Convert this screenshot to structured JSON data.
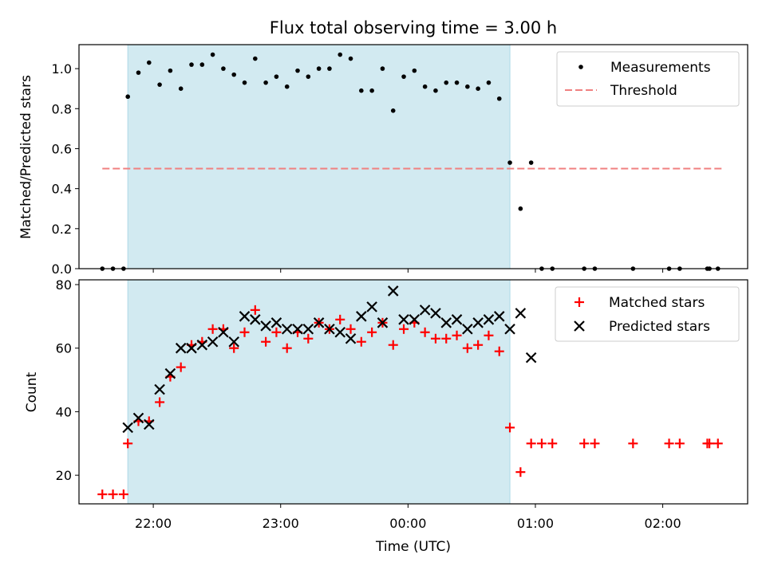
{
  "chart_data": [
    {
      "type": "scatter",
      "title": "Flux total observing time = 3.00 h",
      "ylabel": "Matched/Predicted stars",
      "xlabel": "",
      "xlim": [
        "21:25",
        "02:40"
      ],
      "ylim": [
        0,
        1.12
      ],
      "yticks": [
        0.0,
        0.2,
        0.4,
        0.6,
        0.8,
        1.0
      ],
      "ytick_labels": [
        "0.0",
        "0.2",
        "0.4",
        "0.6",
        "0.8",
        "1.0"
      ],
      "shaded_span": [
        "21:48",
        "00:48"
      ],
      "legend_position": "top-right",
      "grid": false,
      "colors": {
        "measurements": "#000000",
        "threshold": "#f08080",
        "span": "#add8e6"
      },
      "series": [
        {
          "name": "Measurements",
          "marker": "dot",
          "points": [
            [
              "21:36",
              0.0
            ],
            [
              "21:41",
              0.0
            ],
            [
              "21:46",
              0.0
            ],
            [
              "21:48",
              0.86
            ],
            [
              "21:53",
              0.98
            ],
            [
              "21:58",
              1.03
            ],
            [
              "22:03",
              0.92
            ],
            [
              "22:08",
              0.99
            ],
            [
              "22:13",
              0.9
            ],
            [
              "22:18",
              1.02
            ],
            [
              "22:23",
              1.02
            ],
            [
              "22:28",
              1.07
            ],
            [
              "22:33",
              1.0
            ],
            [
              "22:38",
              0.97
            ],
            [
              "22:43",
              0.93
            ],
            [
              "22:48",
              1.05
            ],
            [
              "22:53",
              0.93
            ],
            [
              "22:58",
              0.96
            ],
            [
              "23:03",
              0.91
            ],
            [
              "23:08",
              0.99
            ],
            [
              "23:13",
              0.96
            ],
            [
              "23:18",
              1.0
            ],
            [
              "23:23",
              1.0
            ],
            [
              "23:28",
              1.07
            ],
            [
              "23:33",
              1.05
            ],
            [
              "23:38",
              0.89
            ],
            [
              "23:43",
              0.89
            ],
            [
              "23:48",
              1.0
            ],
            [
              "23:53",
              0.79
            ],
            [
              "23:58",
              0.96
            ],
            [
              "00:03",
              0.99
            ],
            [
              "00:08",
              0.91
            ],
            [
              "00:13",
              0.89
            ],
            [
              "00:18",
              0.93
            ],
            [
              "00:23",
              0.93
            ],
            [
              "00:28",
              0.91
            ],
            [
              "00:33",
              0.9
            ],
            [
              "00:38",
              0.93
            ],
            [
              "00:43",
              0.85
            ],
            [
              "00:48",
              0.53
            ],
            [
              "00:53",
              0.3
            ],
            [
              "00:58",
              0.53
            ],
            [
              "01:03",
              0.0
            ],
            [
              "01:08",
              0.0
            ],
            [
              "01:23",
              0.0
            ],
            [
              "01:28",
              0.0
            ],
            [
              "01:46",
              0.0
            ],
            [
              "02:03",
              0.0
            ],
            [
              "02:08",
              0.0
            ],
            [
              "02:21",
              0.0
            ],
            [
              "02:22",
              0.0
            ],
            [
              "02:26",
              0.0
            ]
          ]
        },
        {
          "name": "Threshold",
          "style": "dashed",
          "points": [
            [
              "21:36",
              0.5
            ],
            [
              "02:29",
              0.5
            ]
          ]
        }
      ]
    },
    {
      "type": "scatter",
      "title": "",
      "ylabel": "Count",
      "xlabel": "Time (UTC)",
      "xlim": [
        "21:25",
        "02:40"
      ],
      "ylim": [
        11,
        81.5
      ],
      "yticks": [
        20,
        40,
        60,
        80
      ],
      "ytick_labels": [
        "20",
        "40",
        "60",
        "80"
      ],
      "xticks": [
        "22:00",
        "23:00",
        "00:00",
        "01:00",
        "02:00"
      ],
      "shaded_span": [
        "21:48",
        "00:48"
      ],
      "legend_position": "top-right",
      "grid": false,
      "colors": {
        "matched": "#ff0000",
        "predicted": "#000000",
        "span": "#add8e6"
      },
      "series": [
        {
          "name": "Matched stars",
          "marker": "plus",
          "points": [
            [
              "21:36",
              14
            ],
            [
              "21:41",
              14
            ],
            [
              "21:46",
              14
            ],
            [
              "21:48",
              30
            ],
            [
              "21:53",
              37
            ],
            [
              "21:58",
              37
            ],
            [
              "22:03",
              43
            ],
            [
              "22:08",
              51
            ],
            [
              "22:13",
              54
            ],
            [
              "22:18",
              61
            ],
            [
              "22:23",
              62
            ],
            [
              "22:28",
              66
            ],
            [
              "22:33",
              66
            ],
            [
              "22:38",
              60
            ],
            [
              "22:43",
              65
            ],
            [
              "22:48",
              72
            ],
            [
              "22:53",
              62
            ],
            [
              "22:58",
              65
            ],
            [
              "23:03",
              60
            ],
            [
              "23:08",
              65
            ],
            [
              "23:13",
              63
            ],
            [
              "23:18",
              68
            ],
            [
              "23:23",
              66
            ],
            [
              "23:28",
              69
            ],
            [
              "23:33",
              66
            ],
            [
              "23:38",
              62
            ],
            [
              "23:43",
              65
            ],
            [
              "23:48",
              68
            ],
            [
              "23:53",
              61
            ],
            [
              "23:58",
              66
            ],
            [
              "00:03",
              68
            ],
            [
              "00:08",
              65
            ],
            [
              "00:13",
              63
            ],
            [
              "00:18",
              63
            ],
            [
              "00:23",
              64
            ],
            [
              "00:28",
              60
            ],
            [
              "00:33",
              61
            ],
            [
              "00:38",
              64
            ],
            [
              "00:43",
              59
            ],
            [
              "00:48",
              35
            ],
            [
              "00:53",
              21
            ],
            [
              "00:58",
              30
            ],
            [
              "01:03",
              30
            ],
            [
              "01:08",
              30
            ],
            [
              "01:23",
              30
            ],
            [
              "01:28",
              30
            ],
            [
              "01:46",
              30
            ],
            [
              "02:03",
              30
            ],
            [
              "02:08",
              30
            ],
            [
              "02:21",
              30
            ],
            [
              "02:22",
              30
            ],
            [
              "02:26",
              30
            ]
          ]
        },
        {
          "name": "Predicted stars",
          "marker": "x",
          "points": [
            [
              "21:48",
              35
            ],
            [
              "21:53",
              38
            ],
            [
              "21:58",
              36
            ],
            [
              "22:03",
              47
            ],
            [
              "22:08",
              52
            ],
            [
              "22:13",
              60
            ],
            [
              "22:18",
              60
            ],
            [
              "22:23",
              61
            ],
            [
              "22:28",
              62
            ],
            [
              "22:33",
              65
            ],
            [
              "22:38",
              62
            ],
            [
              "22:43",
              70
            ],
            [
              "22:48",
              69
            ],
            [
              "22:53",
              67
            ],
            [
              "22:58",
              68
            ],
            [
              "23:03",
              66
            ],
            [
              "23:08",
              66
            ],
            [
              "23:13",
              66
            ],
            [
              "23:18",
              68
            ],
            [
              "23:23",
              66
            ],
            [
              "23:28",
              65
            ],
            [
              "23:33",
              63
            ],
            [
              "23:38",
              70
            ],
            [
              "23:43",
              73
            ],
            [
              "23:48",
              68
            ],
            [
              "23:53",
              78
            ],
            [
              "23:58",
              69
            ],
            [
              "00:03",
              69
            ],
            [
              "00:08",
              72
            ],
            [
              "00:13",
              71
            ],
            [
              "00:18",
              68
            ],
            [
              "00:23",
              69
            ],
            [
              "00:28",
              66
            ],
            [
              "00:33",
              68
            ],
            [
              "00:38",
              69
            ],
            [
              "00:43",
              70
            ],
            [
              "00:48",
              66
            ],
            [
              "00:53",
              71
            ],
            [
              "00:58",
              57
            ]
          ]
        }
      ]
    }
  ]
}
